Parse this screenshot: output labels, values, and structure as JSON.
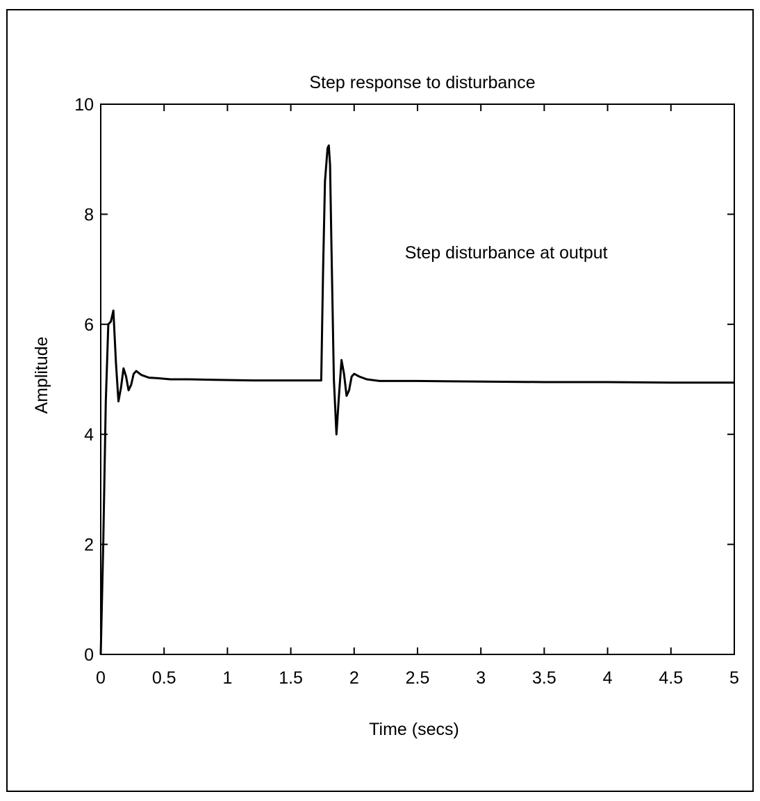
{
  "chart_data": {
    "type": "line",
    "title": "Step response to disturbance",
    "xlabel": "Time (secs)",
    "ylabel": "Amplitude",
    "xlim": [
      0,
      5
    ],
    "ylim": [
      0,
      10
    ],
    "xticks": [
      0,
      0.5,
      1,
      1.5,
      2,
      2.5,
      3,
      3.5,
      4,
      4.5,
      5
    ],
    "xtick_labels": [
      "0",
      "0.5",
      "1",
      "1.5",
      "2",
      "2.5",
      "3",
      "3.5",
      "4",
      "4.5",
      "5"
    ],
    "yticks": [
      0,
      2,
      4,
      6,
      8,
      10
    ],
    "ytick_labels": [
      "0",
      "2",
      "4",
      "6",
      "8",
      "10"
    ],
    "grid": false,
    "annotations": [
      {
        "text": "Step disturbance at output",
        "x": 3.2,
        "y": 7.2
      }
    ],
    "series": [
      {
        "x": [
          0,
          0.02,
          0.04,
          0.06,
          0.08,
          0.1,
          0.12,
          0.14,
          0.16,
          0.18,
          0.2,
          0.22,
          0.24,
          0.26,
          0.28,
          0.32,
          0.38,
          0.45,
          0.55,
          0.7,
          0.9,
          1.2,
          1.5,
          1.74,
          1.755,
          1.77,
          1.79,
          1.8,
          1.81,
          1.82,
          1.84,
          1.86,
          1.88,
          1.9,
          1.92,
          1.94,
          1.96,
          1.98,
          2.0,
          2.04,
          2.1,
          2.2,
          2.3,
          2.5,
          3.0,
          3.5,
          4.0,
          4.5,
          5.0
        ],
        "y": [
          0,
          2.0,
          4.6,
          6.0,
          6.05,
          6.25,
          5.3,
          4.6,
          4.85,
          5.2,
          5.05,
          4.8,
          4.9,
          5.1,
          5.15,
          5.08,
          5.03,
          5.02,
          5.0,
          5.0,
          4.99,
          4.98,
          4.98,
          4.98,
          7.0,
          8.6,
          9.2,
          9.25,
          8.9,
          7.5,
          5.0,
          4.0,
          4.7,
          5.35,
          5.1,
          4.7,
          4.8,
          5.05,
          5.1,
          5.05,
          5.0,
          4.97,
          4.97,
          4.97,
          4.96,
          4.95,
          4.95,
          4.94,
          4.94
        ]
      }
    ]
  }
}
